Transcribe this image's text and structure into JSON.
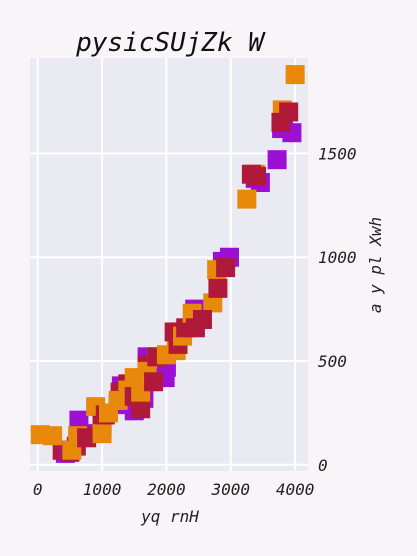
{
  "chart_data": {
    "type": "scatter",
    "title": "pysicSUjZk W",
    "xlabel": "yq rnH",
    "ylabel": "a y pl Xwh",
    "xlim": [
      -120,
      4200
    ],
    "ylim": [
      -30,
      1960
    ],
    "xticks": [
      0,
      1000,
      2000,
      3000,
      4000
    ],
    "yticks": [
      0,
      500,
      1000,
      1500
    ],
    "grid": true,
    "background": "#eaeaf2",
    "marker": "square",
    "series": [
      {
        "color": "#9b10d3",
        "points": [
          [
            430,
            55
          ],
          [
            480,
            70
          ],
          [
            640,
            215
          ],
          [
            760,
            150
          ],
          [
            1250,
            290
          ],
          [
            1300,
            380
          ],
          [
            1430,
            300
          ],
          [
            1500,
            260
          ],
          [
            1650,
            320
          ],
          [
            1700,
            520
          ],
          [
            1980,
            420
          ],
          [
            2000,
            470
          ],
          [
            2440,
            750
          ],
          [
            2870,
            980
          ],
          [
            2980,
            1000
          ],
          [
            3380,
            1380
          ],
          [
            3460,
            1360
          ],
          [
            3720,
            1470
          ],
          [
            3790,
            1620
          ],
          [
            3820,
            1690
          ],
          [
            3950,
            1600
          ]
        ]
      },
      {
        "color": "#b0193a",
        "points": [
          [
            380,
            70
          ],
          [
            500,
            60
          ],
          [
            600,
            90
          ],
          [
            670,
            140
          ],
          [
            760,
            130
          ],
          [
            1000,
            190
          ],
          [
            1050,
            240
          ],
          [
            1280,
            350
          ],
          [
            1400,
            390
          ],
          [
            1500,
            330
          ],
          [
            1600,
            270
          ],
          [
            1700,
            480
          ],
          [
            1800,
            400
          ],
          [
            1850,
            520
          ],
          [
            2120,
            640
          ],
          [
            2180,
            580
          ],
          [
            2300,
            660
          ],
          [
            2450,
            660
          ],
          [
            2560,
            700
          ],
          [
            2800,
            850
          ],
          [
            2920,
            950
          ],
          [
            3320,
            1400
          ],
          [
            3400,
            1390
          ],
          [
            3780,
            1650
          ],
          [
            3900,
            1700
          ]
        ]
      },
      {
        "color": "#e8890c",
        "points": [
          [
            40,
            145
          ],
          [
            230,
            140
          ],
          [
            530,
            70
          ],
          [
            620,
            140
          ],
          [
            900,
            280
          ],
          [
            1000,
            150
          ],
          [
            1100,
            250
          ],
          [
            1250,
            310
          ],
          [
            1400,
            360
          ],
          [
            1500,
            420
          ],
          [
            1600,
            350
          ],
          [
            1700,
            450
          ],
          [
            1850,
            520
          ],
          [
            2000,
            530
          ],
          [
            2150,
            550
          ],
          [
            2250,
            620
          ],
          [
            2400,
            730
          ],
          [
            2720,
            780
          ],
          [
            2780,
            940
          ],
          [
            3250,
            1280
          ],
          [
            3380,
            1400
          ],
          [
            3800,
            1710
          ],
          [
            4000,
            1880
          ]
        ]
      }
    ]
  }
}
